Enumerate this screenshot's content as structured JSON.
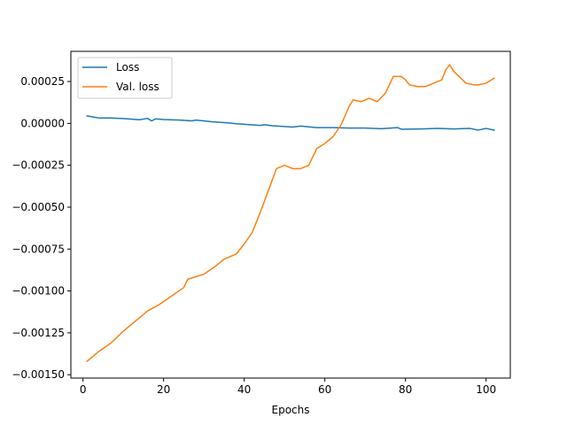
{
  "chart_data": {
    "type": "line",
    "title": "",
    "xlabel": "Epochs",
    "ylabel": "",
    "xlim": [
      -3,
      106
    ],
    "ylim": [
      -0.00152,
      0.00043
    ],
    "xticks": [
      0,
      20,
      40,
      60,
      80,
      100
    ],
    "xtick_labels": [
      "0",
      "20",
      "40",
      "60",
      "80",
      "100"
    ],
    "yticks": [
      -0.0015,
      -0.00125,
      -0.001,
      -0.00075,
      -0.0005,
      -0.00025,
      0.0,
      0.00025
    ],
    "ytick_labels": [
      "−0.00150",
      "−0.00125",
      "−0.00100",
      "−0.00075",
      "−0.00050",
      "−0.00025",
      "0.00000",
      "0.00025"
    ],
    "grid": false,
    "legend_position": "top-left",
    "series": [
      {
        "name": "Loss",
        "color": "#1f77b4",
        "points": [
          [
            1,
            4.5e-05
          ],
          [
            4,
            3.2e-05
          ],
          [
            7,
            3.2e-05
          ],
          [
            10,
            2.9e-05
          ],
          [
            14,
            2.2e-05
          ],
          [
            16,
            3e-05
          ],
          [
            17,
            1.5e-05
          ],
          [
            18,
            2.7e-05
          ],
          [
            20,
            2.3e-05
          ],
          [
            24,
            2e-05
          ],
          [
            27,
            1.5e-05
          ],
          [
            28,
            2e-05
          ],
          [
            32,
            1e-05
          ],
          [
            36,
            3e-06
          ],
          [
            38,
            -2e-06
          ],
          [
            40,
            -5e-06
          ],
          [
            44,
            -1.2e-05
          ],
          [
            45,
            -8e-06
          ],
          [
            47,
            -1.4e-05
          ],
          [
            52,
            -2.2e-05
          ],
          [
            54,
            -1.6e-05
          ],
          [
            58,
            -2.5e-05
          ],
          [
            62,
            -2.5e-05
          ],
          [
            66,
            -2.8e-05
          ],
          [
            70,
            -2.8e-05
          ],
          [
            74,
            -3.2e-05
          ],
          [
            78,
            -2.5e-05
          ],
          [
            79,
            -3.5e-05
          ],
          [
            84,
            -3.3e-05
          ],
          [
            88,
            -3e-05
          ],
          [
            92,
            -3.3e-05
          ],
          [
            96,
            -3e-05
          ],
          [
            98,
            -4e-05
          ],
          [
            100,
            -3e-05
          ],
          [
            102,
            -4e-05
          ]
        ]
      },
      {
        "name": "Val. loss",
        "color": "#ff7f0e",
        "points": [
          [
            1,
            -0.00142
          ],
          [
            4,
            -0.00136
          ],
          [
            7,
            -0.00131
          ],
          [
            10,
            -0.00124
          ],
          [
            13,
            -0.00118
          ],
          [
            16,
            -0.00112
          ],
          [
            19,
            -0.00108
          ],
          [
            22,
            -0.00103
          ],
          [
            25,
            -0.00098
          ],
          [
            26,
            -0.00093
          ],
          [
            30,
            -0.0009
          ],
          [
            33,
            -0.00085
          ],
          [
            35,
            -0.00081
          ],
          [
            38,
            -0.00078
          ],
          [
            40,
            -0.00072
          ],
          [
            42,
            -0.00065
          ],
          [
            44,
            -0.00053
          ],
          [
            46,
            -0.0004
          ],
          [
            48,
            -0.00027
          ],
          [
            50,
            -0.00025
          ],
          [
            52,
            -0.00027
          ],
          [
            54,
            -0.00027
          ],
          [
            56,
            -0.00025
          ],
          [
            58,
            -0.00015
          ],
          [
            60,
            -0.00012
          ],
          [
            62,
            -8e-05
          ],
          [
            64,
            -1e-05
          ],
          [
            66,
            0.0001
          ],
          [
            67,
            0.00014
          ],
          [
            69,
            0.00013
          ],
          [
            71,
            0.00015
          ],
          [
            73,
            0.00013
          ],
          [
            75,
            0.00018
          ],
          [
            76,
            0.00023
          ],
          [
            77,
            0.00028
          ],
          [
            79,
            0.00028
          ],
          [
            80,
            0.00026
          ],
          [
            81,
            0.00023
          ],
          [
            83,
            0.00022
          ],
          [
            85,
            0.00022
          ],
          [
            87,
            0.00024
          ],
          [
            89,
            0.00026
          ],
          [
            90,
            0.00032
          ],
          [
            91,
            0.00035
          ],
          [
            92,
            0.00031
          ],
          [
            95,
            0.00024
          ],
          [
            97,
            0.00023
          ],
          [
            98,
            0.00023
          ],
          [
            100,
            0.00024
          ],
          [
            102,
            0.00027
          ]
        ]
      }
    ]
  }
}
